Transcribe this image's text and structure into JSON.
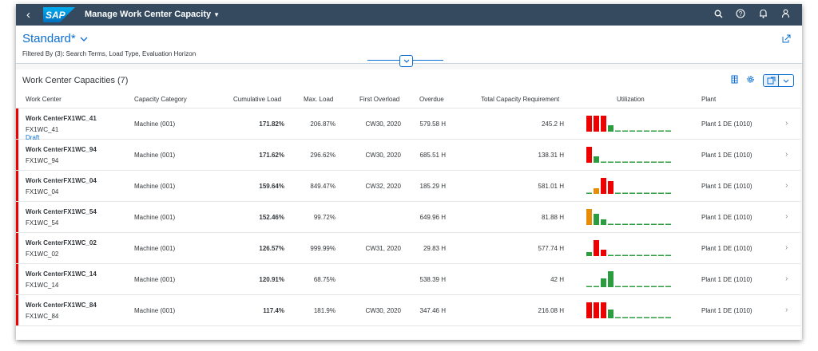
{
  "shell": {
    "back_icon": "back-icon",
    "logo_text": "SAP",
    "app_title": "Manage Work Center Capacity",
    "icons": [
      "search-icon",
      "help-icon",
      "notification-icon",
      "user-icon"
    ],
    "colors": {
      "shellbar": "#354a5f",
      "accent": "#0a6ed1",
      "critical": "#e00",
      "warning": "#e78c07",
      "good": "#2b9c3f"
    }
  },
  "header": {
    "variant": "Standard*",
    "filtered_by": "Filtered By (3): Search Terms, Load Type, Evaluation Horizon"
  },
  "table": {
    "title": "Work Center Capacities (7)",
    "columns": [
      "Work Center",
      "Capacity Category",
      "Cumulative Load",
      "Max. Load",
      "First Overload",
      "Overdue",
      "Total Capacity Requirement",
      "Utilization",
      "Plant"
    ],
    "rows": [
      {
        "name": "Work CenterFX1WC_41",
        "id": "FX1WC_41",
        "draft": "Draft",
        "category": "Machine (001)",
        "cumulative": "171.82%",
        "max": "206.87%",
        "first_overload": "CW30, 2020",
        "overdue": "579.58 H",
        "total": "245.2 H",
        "plant": "Plant 1 DE (1010)",
        "util": [
          {
            "v": 100,
            "s": "critical"
          },
          {
            "v": 100,
            "s": "critical"
          },
          {
            "v": 100,
            "s": "critical"
          },
          {
            "v": 40,
            "s": "good"
          },
          {
            "v": 5,
            "s": "good"
          },
          {
            "v": 5,
            "s": "good"
          },
          {
            "v": 5,
            "s": "good"
          },
          {
            "v": 5,
            "s": "good"
          },
          {
            "v": 5,
            "s": "good"
          },
          {
            "v": 5,
            "s": "good"
          },
          {
            "v": 5,
            "s": "good"
          },
          {
            "v": 5,
            "s": "good"
          }
        ]
      },
      {
        "name": "Work CenterFX1WC_94",
        "id": "FX1WC_94",
        "draft": "",
        "category": "Machine (001)",
        "cumulative": "171.62%",
        "max": "296.62%",
        "first_overload": "CW30, 2020",
        "overdue": "685.51 H",
        "total": "138.31 H",
        "plant": "Plant 1 DE (1010)",
        "util": [
          {
            "v": 100,
            "s": "critical"
          },
          {
            "v": 40,
            "s": "good"
          },
          {
            "v": 5,
            "s": "good"
          },
          {
            "v": 5,
            "s": "good"
          },
          {
            "v": 5,
            "s": "good"
          },
          {
            "v": 5,
            "s": "good"
          },
          {
            "v": 5,
            "s": "good"
          },
          {
            "v": 5,
            "s": "good"
          },
          {
            "v": 5,
            "s": "good"
          },
          {
            "v": 5,
            "s": "good"
          },
          {
            "v": 5,
            "s": "good"
          },
          {
            "v": 5,
            "s": "good"
          }
        ]
      },
      {
        "name": "Work CenterFX1WC_04",
        "id": "FX1WC_04",
        "draft": "",
        "category": "Machine (001)",
        "cumulative": "159.64%",
        "max": "849.47%",
        "first_overload": "CW32, 2020",
        "overdue": "185.29 H",
        "total": "581.01 H",
        "plant": "Plant 1 DE (1010)",
        "util": [
          {
            "v": 5,
            "s": "good"
          },
          {
            "v": 35,
            "s": "warning"
          },
          {
            "v": 100,
            "s": "critical"
          },
          {
            "v": 80,
            "s": "critical"
          },
          {
            "v": 5,
            "s": "good"
          },
          {
            "v": 5,
            "s": "good"
          },
          {
            "v": 5,
            "s": "good"
          },
          {
            "v": 5,
            "s": "good"
          },
          {
            "v": 5,
            "s": "good"
          },
          {
            "v": 5,
            "s": "good"
          },
          {
            "v": 5,
            "s": "good"
          },
          {
            "v": 5,
            "s": "good"
          }
        ]
      },
      {
        "name": "Work CenterFX1WC_54",
        "id": "FX1WC_54",
        "draft": "",
        "category": "Machine (001)",
        "cumulative": "152.46%",
        "max": "99.72%",
        "first_overload": "",
        "overdue": "649.96 H",
        "total": "81.88 H",
        "plant": "Plant 1 DE (1010)",
        "util": [
          {
            "v": 100,
            "s": "warning"
          },
          {
            "v": 70,
            "s": "good"
          },
          {
            "v": 35,
            "s": "good"
          },
          {
            "v": 5,
            "s": "good"
          },
          {
            "v": 5,
            "s": "good"
          },
          {
            "v": 5,
            "s": "good"
          },
          {
            "v": 5,
            "s": "good"
          },
          {
            "v": 5,
            "s": "good"
          },
          {
            "v": 5,
            "s": "good"
          },
          {
            "v": 5,
            "s": "good"
          },
          {
            "v": 5,
            "s": "good"
          },
          {
            "v": 5,
            "s": "good"
          }
        ]
      },
      {
        "name": "Work CenterFX1WC_02",
        "id": "FX1WC_02",
        "draft": "",
        "category": "Machine (001)",
        "cumulative": "126.57%",
        "max": "999.99%",
        "first_overload": "CW31, 2020",
        "overdue": "29.83 H",
        "total": "577.74 H",
        "plant": "Plant 1 DE (1010)",
        "util": [
          {
            "v": 25,
            "s": "good"
          },
          {
            "v": 100,
            "s": "critical"
          },
          {
            "v": 40,
            "s": "critical"
          },
          {
            "v": 5,
            "s": "good"
          },
          {
            "v": 5,
            "s": "good"
          },
          {
            "v": 5,
            "s": "good"
          },
          {
            "v": 5,
            "s": "good"
          },
          {
            "v": 5,
            "s": "good"
          },
          {
            "v": 5,
            "s": "good"
          },
          {
            "v": 5,
            "s": "good"
          },
          {
            "v": 5,
            "s": "good"
          },
          {
            "v": 5,
            "s": "good"
          }
        ]
      },
      {
        "name": "Work CenterFX1WC_14",
        "id": "FX1WC_14",
        "draft": "",
        "category": "Machine (001)",
        "cumulative": "120.91%",
        "max": "68.75%",
        "first_overload": "",
        "overdue": "538.39 H",
        "total": "42 H",
        "plant": "Plant 1 DE (1010)",
        "util": [
          {
            "v": 5,
            "s": "good"
          },
          {
            "v": 5,
            "s": "good"
          },
          {
            "v": 55,
            "s": "good"
          },
          {
            "v": 100,
            "s": "good"
          },
          {
            "v": 5,
            "s": "good"
          },
          {
            "v": 5,
            "s": "good"
          },
          {
            "v": 5,
            "s": "good"
          },
          {
            "v": 5,
            "s": "good"
          },
          {
            "v": 5,
            "s": "good"
          },
          {
            "v": 5,
            "s": "good"
          },
          {
            "v": 5,
            "s": "good"
          },
          {
            "v": 5,
            "s": "good"
          }
        ]
      },
      {
        "name": "Work CenterFX1WC_84",
        "id": "FX1WC_84",
        "draft": "",
        "category": "Machine (001)",
        "cumulative": "117.4%",
        "max": "181.9%",
        "first_overload": "CW30, 2020",
        "overdue": "347.46 H",
        "total": "216.08 H",
        "plant": "Plant 1 DE (1010)",
        "util": [
          {
            "v": 100,
            "s": "critical"
          },
          {
            "v": 100,
            "s": "critical"
          },
          {
            "v": 100,
            "s": "critical"
          },
          {
            "v": 55,
            "s": "good"
          },
          {
            "v": 5,
            "s": "good"
          },
          {
            "v": 5,
            "s": "good"
          },
          {
            "v": 5,
            "s": "good"
          },
          {
            "v": 5,
            "s": "good"
          },
          {
            "v": 5,
            "s": "good"
          },
          {
            "v": 5,
            "s": "good"
          },
          {
            "v": 5,
            "s": "good"
          },
          {
            "v": 5,
            "s": "good"
          }
        ]
      }
    ]
  }
}
